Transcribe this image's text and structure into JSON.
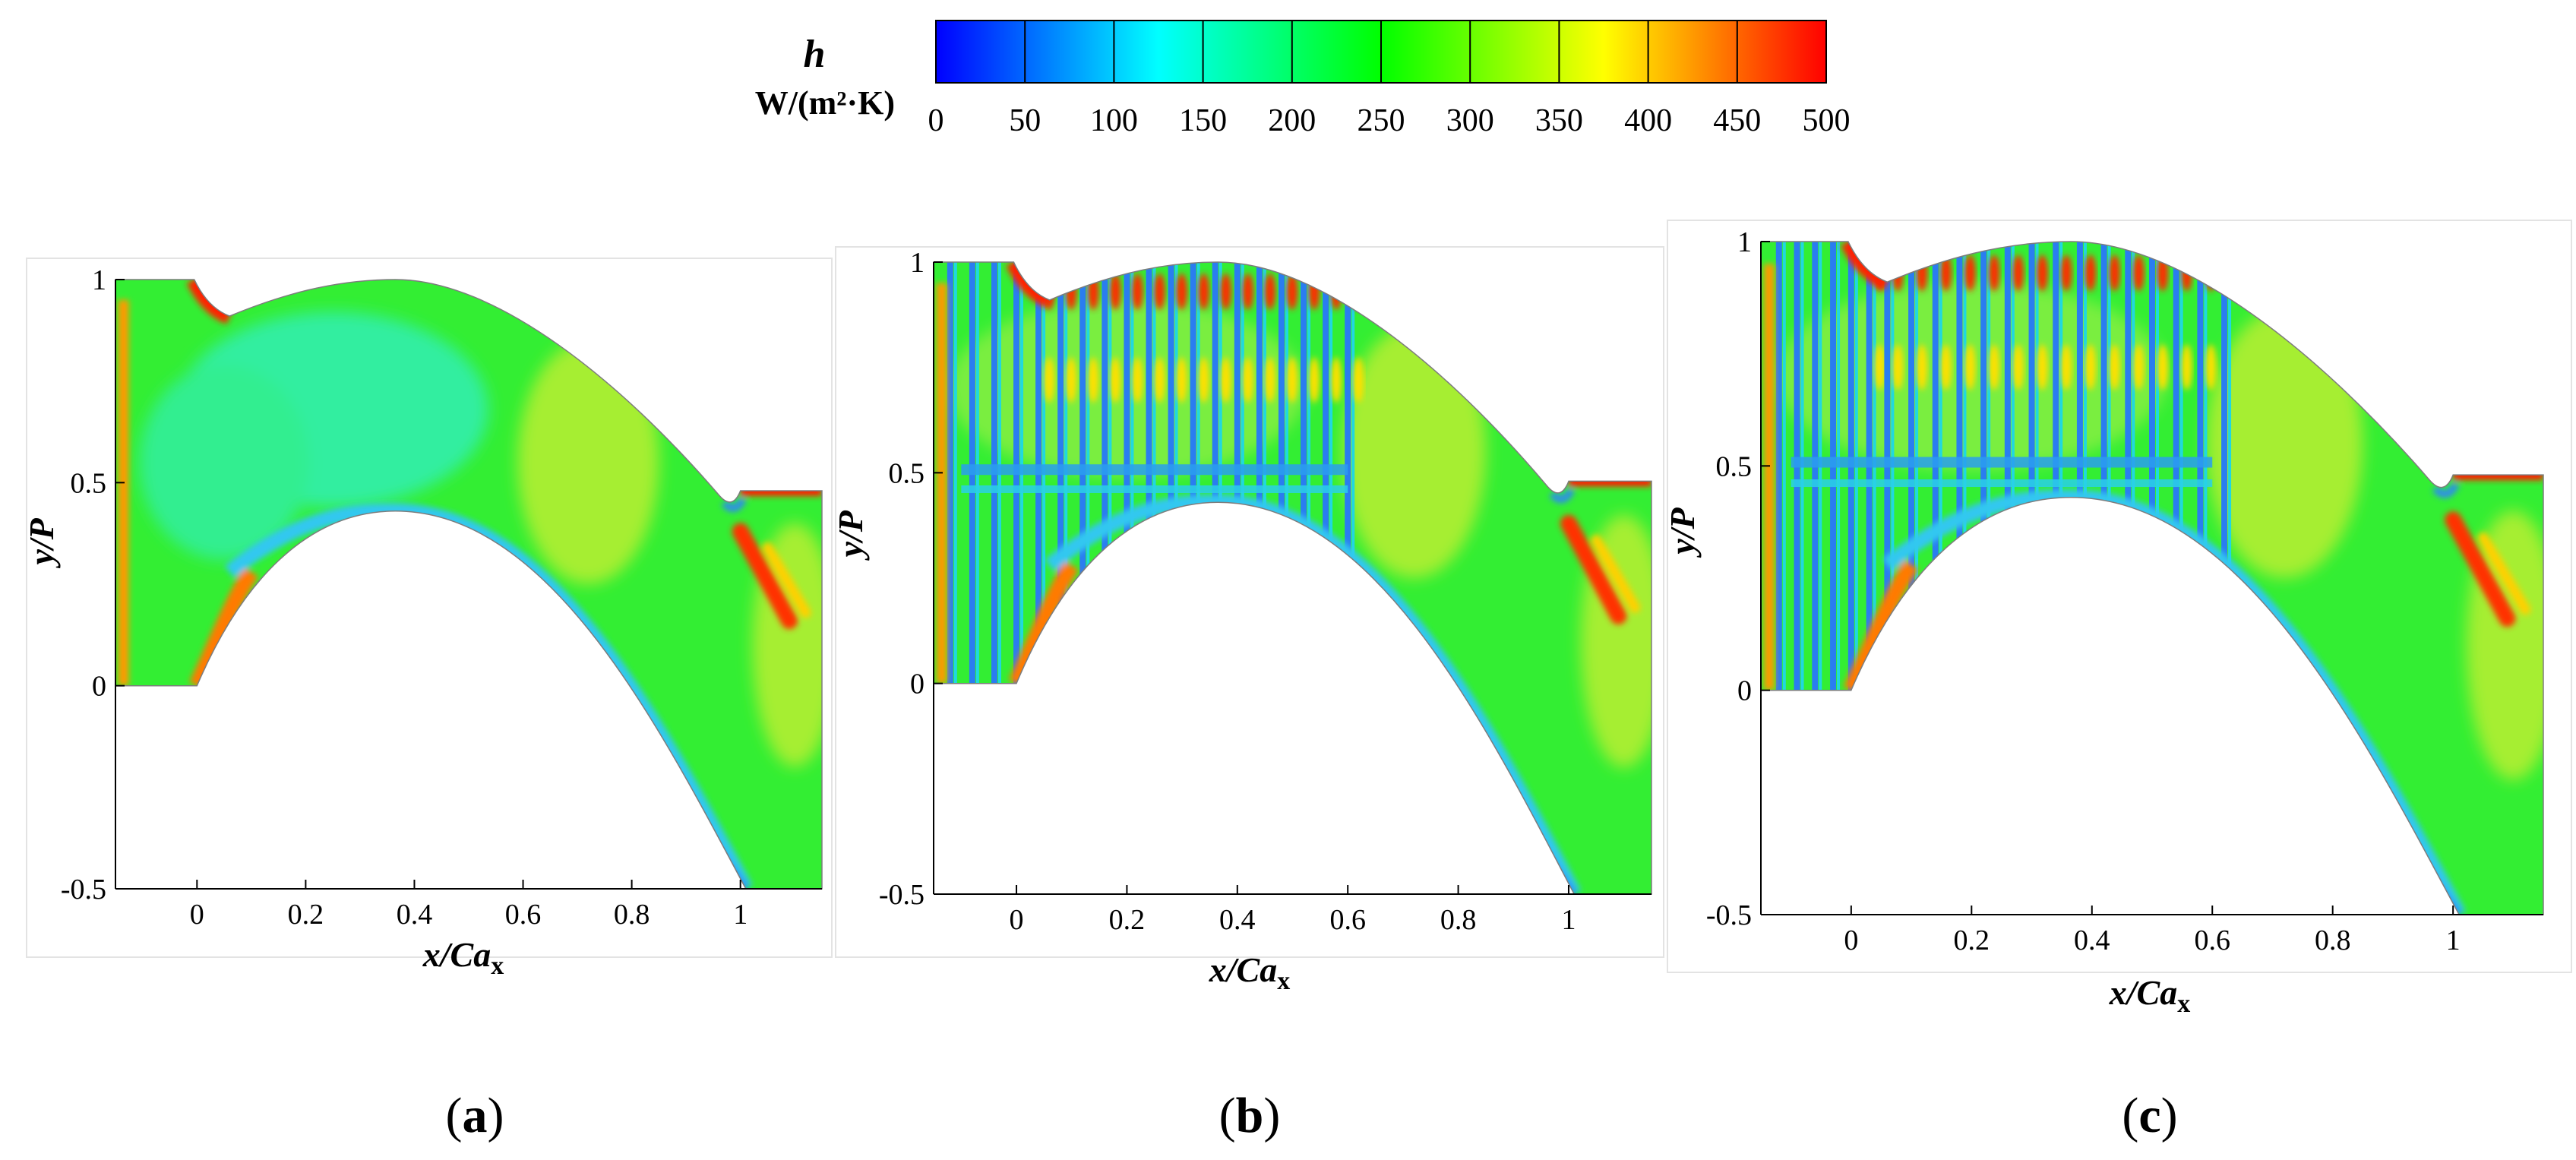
{
  "colorbar": {
    "symbol": "h",
    "unit": "W/(m²·K)",
    "ticks": [
      "0",
      "50",
      "100",
      "150",
      "200",
      "250",
      "300",
      "350",
      "400",
      "450",
      "500"
    ],
    "range": [
      0,
      500
    ],
    "colors": [
      "#0000ff",
      "#0080ff",
      "#00ffff",
      "#00ff80",
      "#00ff00",
      "#80ff00",
      "#ffff00",
      "#ff8000",
      "#ff0000"
    ]
  },
  "chart_data": [
    {
      "type": "heatmap",
      "label": "(a)",
      "letter": "a",
      "title": "",
      "xlabel": "x/Cax",
      "ylabel": "y/P",
      "xlim": [
        -0.15,
        1.15
      ],
      "ylim": [
        -0.5,
        1.0
      ],
      "xticks": [
        "0",
        "0.2",
        "0.4",
        "0.6",
        "0.8",
        "1"
      ],
      "yticks": [
        "-0.5",
        "0",
        "0.5",
        "1"
      ],
      "ribs": []
    },
    {
      "type": "heatmap",
      "label": "(b)",
      "letter": "b",
      "title": "",
      "xlabel": "x/Cax",
      "ylabel": "y/P",
      "xlim": [
        -0.15,
        1.15
      ],
      "ylim": [
        -0.5,
        1.0
      ],
      "xticks": [
        "0",
        "0.2",
        "0.4",
        "0.6",
        "0.8",
        "1"
      ],
      "yticks": [
        "-0.5",
        "0",
        "0.5",
        "1"
      ],
      "ribs": [
        -0.12,
        -0.08,
        -0.04,
        0.0,
        0.04,
        0.08,
        0.12,
        0.16,
        0.2,
        0.24,
        0.28,
        0.32,
        0.36,
        0.4,
        0.44,
        0.48,
        0.52,
        0.56,
        0.6
      ]
    },
    {
      "type": "heatmap",
      "label": "(c)",
      "letter": "c",
      "title": "",
      "xlabel": "x/Cax",
      "ylabel": "y/P",
      "xlim": [
        -0.15,
        1.15
      ],
      "ylim": [
        -0.5,
        1.0
      ],
      "xticks": [
        "0",
        "0.2",
        "0.4",
        "0.6",
        "0.8",
        "1"
      ],
      "yticks": [
        "-0.5",
        "0",
        "0.5",
        "1"
      ],
      "ribs": [
        -0.12,
        -0.09,
        -0.06,
        -0.03,
        0.0,
        0.03,
        0.06,
        0.1,
        0.14,
        0.18,
        0.22,
        0.26,
        0.3,
        0.34,
        0.38,
        0.42,
        0.46,
        0.5,
        0.54,
        0.58,
        0.62
      ]
    }
  ]
}
